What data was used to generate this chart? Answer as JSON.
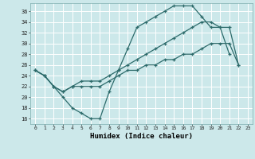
{
  "title": "",
  "xlabel": "Humidex (Indice chaleur)",
  "bg_color": "#cce8ea",
  "grid_color": "#ffffff",
  "line_color": "#2d6b6b",
  "marker": "+",
  "xlim": [
    -0.5,
    23.5
  ],
  "ylim": [
    15,
    37.5
  ],
  "yticks": [
    16,
    18,
    20,
    22,
    24,
    26,
    28,
    30,
    32,
    34,
    36
  ],
  "xticks": [
    0,
    1,
    2,
    3,
    4,
    5,
    6,
    7,
    8,
    9,
    10,
    11,
    12,
    13,
    14,
    15,
    16,
    17,
    18,
    19,
    20,
    21,
    22,
    23
  ],
  "line1_x": [
    0,
    1,
    2,
    3,
    4,
    5,
    6,
    7,
    8,
    9,
    10,
    11,
    12,
    13,
    14,
    15,
    16,
    17,
    18,
    19,
    20,
    21
  ],
  "line1_y": [
    25,
    24,
    22,
    20,
    18,
    17,
    16,
    16,
    21,
    25,
    29,
    33,
    34,
    35,
    36,
    37,
    37,
    37,
    35,
    33,
    33,
    28
  ],
  "line2_x": [
    0,
    1,
    2,
    3,
    4,
    5,
    6,
    7,
    8,
    9,
    10,
    11,
    12,
    13,
    14,
    15,
    16,
    17,
    18,
    19,
    20,
    21,
    22
  ],
  "line2_y": [
    25,
    24,
    22,
    21,
    22,
    23,
    23,
    23,
    24,
    25,
    26,
    27,
    28,
    29,
    30,
    31,
    32,
    33,
    34,
    34,
    33,
    33,
    26
  ],
  "line3_x": [
    0,
    1,
    2,
    3,
    4,
    5,
    6,
    7,
    8,
    9,
    10,
    11,
    12,
    13,
    14,
    15,
    16,
    17,
    18,
    19,
    20,
    21,
    22
  ],
  "line3_y": [
    25,
    24,
    22,
    21,
    22,
    22,
    22,
    22,
    23,
    24,
    25,
    25,
    26,
    26,
    27,
    27,
    28,
    28,
    29,
    30,
    30,
    30,
    26
  ]
}
